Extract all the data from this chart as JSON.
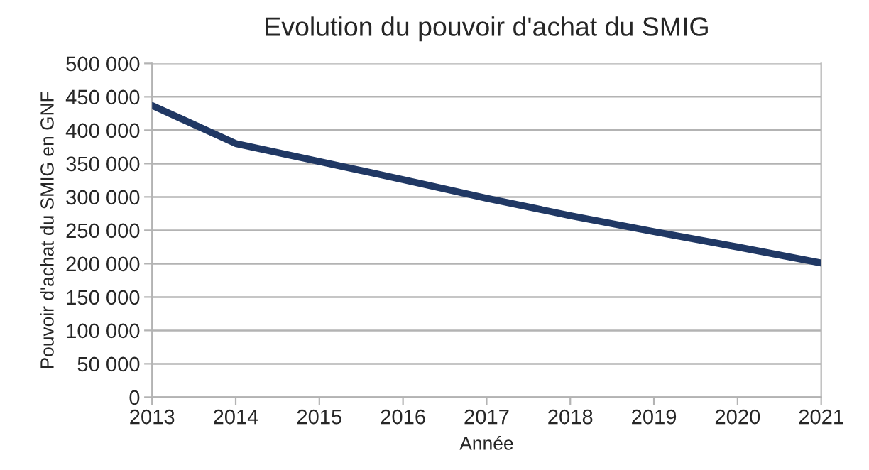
{
  "chart_data": {
    "type": "line",
    "title": "Evolution du pouvoir d'achat du SMIG",
    "xlabel": "Année",
    "ylabel": "Pouvoir d'achat du SMIG en GNF",
    "x": [
      2013,
      2014,
      2015,
      2016,
      2017,
      2018,
      2019,
      2020,
      2021
    ],
    "series": [
      {
        "color": "#203864",
        "values": [
          437000,
          380000,
          353000,
          326000,
          298000,
          272000,
          248000,
          225000,
          201000
        ]
      }
    ],
    "xlim": [
      2013,
      2021
    ],
    "xticks": [
      2013,
      2014,
      2015,
      2016,
      2017,
      2018,
      2019,
      2020,
      2021
    ],
    "ylim": [
      0,
      500000
    ],
    "yticks": [
      {
        "value": 0,
        "label": "0"
      },
      {
        "value": 50000,
        "label": "50 000"
      },
      {
        "value": 100000,
        "label": "100 000"
      },
      {
        "value": 150000,
        "label": "150 000"
      },
      {
        "value": 200000,
        "label": "200 000"
      },
      {
        "value": 250000,
        "label": "250 000"
      },
      {
        "value": 300000,
        "label": "300 000"
      },
      {
        "value": 350000,
        "label": "350 000"
      },
      {
        "value": 400000,
        "label": "400 000"
      },
      {
        "value": 450000,
        "label": "450 000"
      },
      {
        "value": 500000,
        "label": "500 000"
      }
    ],
    "grid": "y",
    "marker": "none",
    "line_style": "solid"
  }
}
